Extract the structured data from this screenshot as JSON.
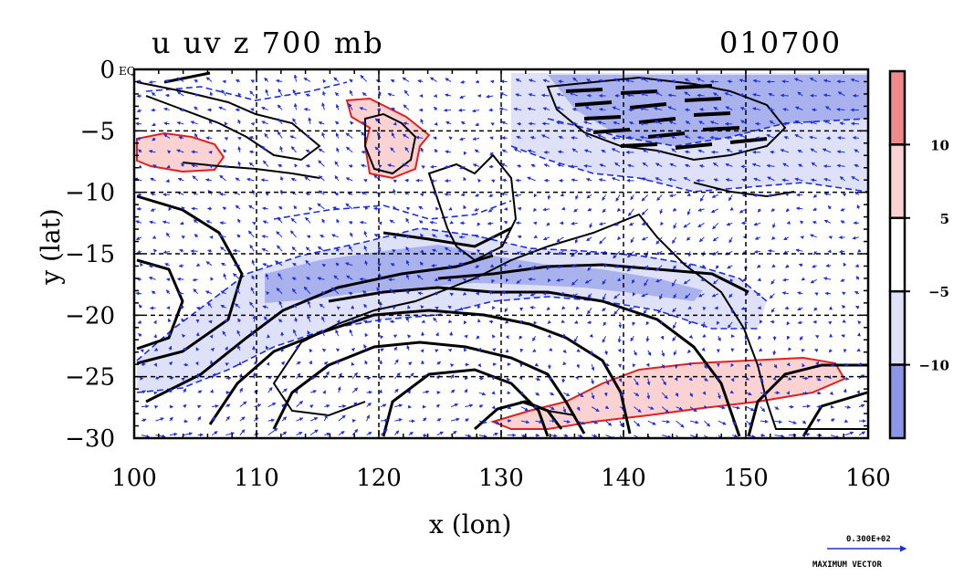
{
  "title": {
    "left": "u uv z 700 mb",
    "right": "010700"
  },
  "chart_data": {
    "type": "contour",
    "xlabel": "x (lon)",
    "ylabel": "y (lat)",
    "xlim": [
      100,
      160
    ],
    "ylim": [
      -30,
      0
    ],
    "x_ticks": [
      "100",
      "110",
      "120",
      "130",
      "140",
      "150",
      "160"
    ],
    "y_ticks": [
      "0",
      "−5",
      "−10",
      "−15",
      "−20",
      "−25",
      "−30"
    ],
    "x_tick_values": [
      100,
      110,
      120,
      130,
      140,
      150,
      160
    ],
    "y_tick_values": [
      0,
      -5,
      -10,
      -15,
      -20,
      -25,
      -30
    ],
    "grid": true,
    "corner_label": "EQ",
    "colorbar": {
      "labels": [
        "10",
        "5",
        "−5",
        "−10"
      ],
      "label_values": [
        10,
        5,
        -5,
        -10
      ],
      "band_colors": [
        "#f08a8a",
        "#fbd2d2",
        "#ffffff",
        "#dfe1f8",
        "#8c95e6"
      ]
    },
    "colors": {
      "positive_fill": "#fbd2d2",
      "positive_line": "#e02020",
      "negative_fill_light": "#dfe1f8",
      "negative_fill_dark": "#aab2ee",
      "vector": "#1c2ee0",
      "contour": "#000000"
    },
    "reference_vector": {
      "value": "0.300E+02",
      "label": "MAXIMUM VECTOR"
    }
  }
}
